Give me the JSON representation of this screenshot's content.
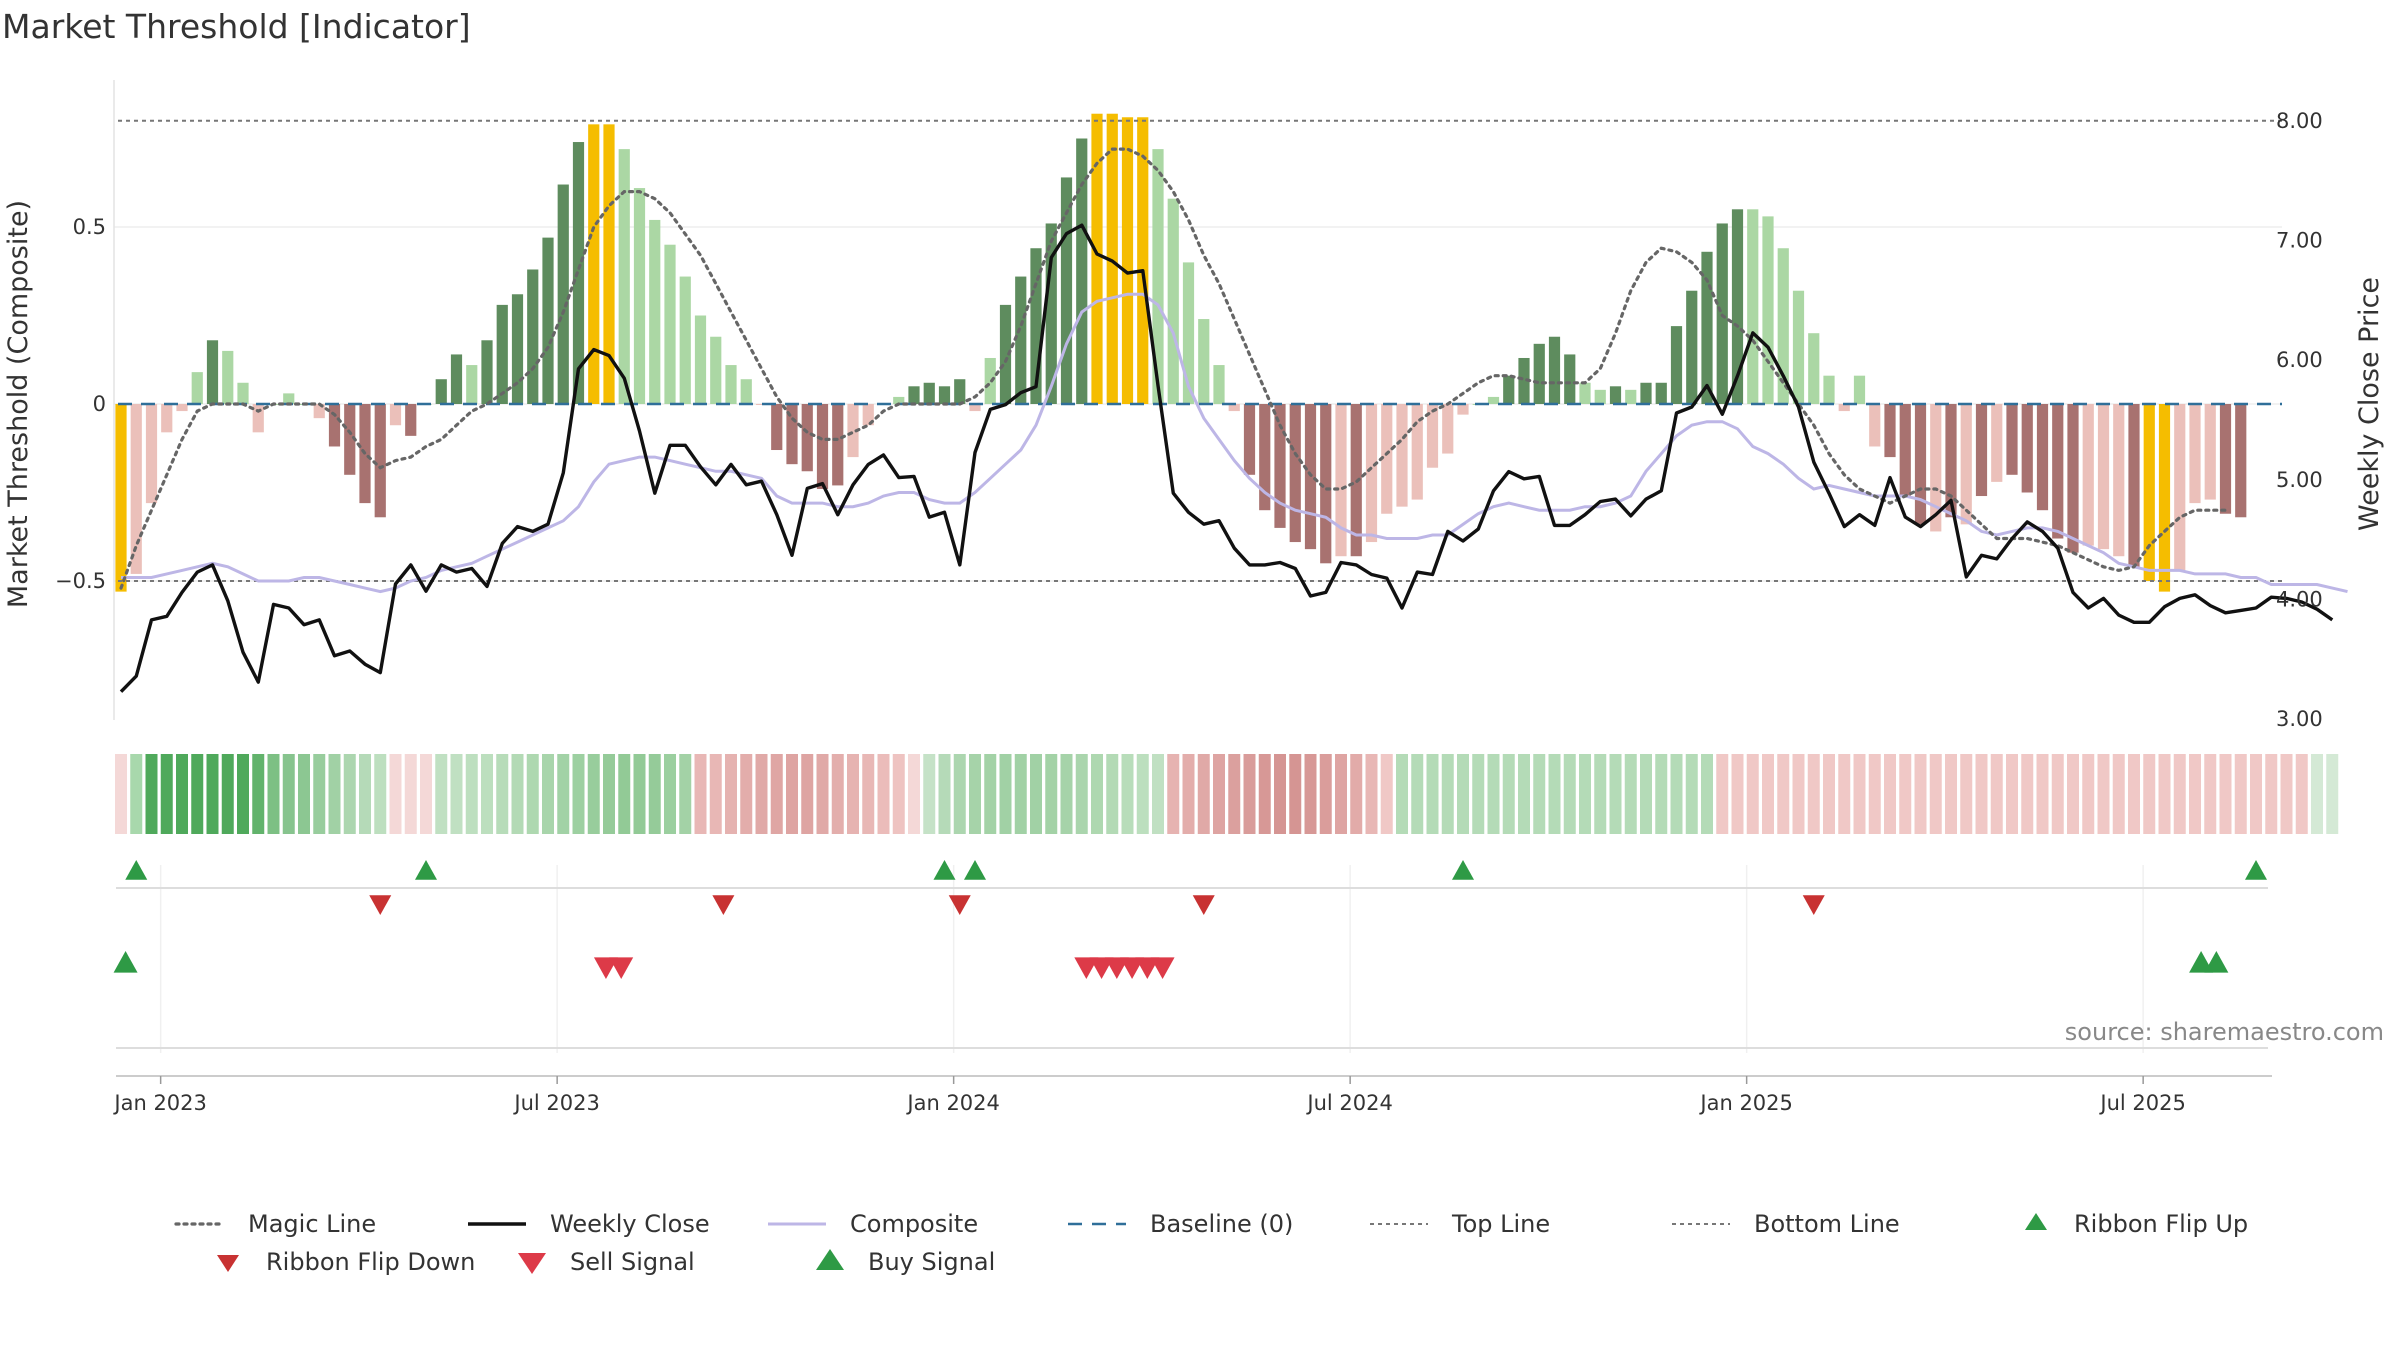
{
  "title": "Market Threshold [Indicator]",
  "source": "source: sharemaestro.com",
  "colors": {
    "bar_gold": "#f5bd00",
    "bar_green_dark": "#5e8c5e",
    "bar_green_light": "#abd7a4",
    "bar_red_dark": "#a87270",
    "bar_red_light": "#ebc0ba",
    "close_line": "#111111",
    "composite_line": "#bdb6e6",
    "magic_line": "#666666",
    "baseline": "#2f6f99",
    "ref_line": "#777777",
    "flip_up": "#2e9a45",
    "flip_down": "#c83232",
    "sell": "#dd3a48",
    "buy": "#2e9a45"
  },
  "chart_data": {
    "type": "bar",
    "title": "Market Threshold [Indicator]",
    "y_left_label": "Market Threshold (Composite)",
    "y_right_label": "Weekly Close Price",
    "y_left_ticks": [
      "0.5",
      "0",
      "−0.5"
    ],
    "y_left_tick_values": [
      0.5,
      0,
      -0.5
    ],
    "y_right_ticks": [
      "8.00",
      "7.00",
      "6.00",
      "5.00",
      "4.00",
      "3.00"
    ],
    "y_right_tick_values": [
      8,
      7,
      6,
      5,
      4,
      3
    ],
    "x_ticks": [
      "Jan 2023",
      "Jul 2023",
      "Jan 2024",
      "Jul 2024",
      "Jan 2025",
      "Jul 2025"
    ],
    "x_tick_weeks": [
      2.6,
      28.6,
      54.6,
      80.6,
      106.6,
      132.6
    ],
    "ylim_left": [
      -0.9,
      0.92
    ],
    "ylim_right": [
      3.0,
      8.2
    ],
    "top_line": 0.8,
    "bottom_line": -0.5,
    "baseline": 0,
    "weekly_close": [
      3.22,
      3.35,
      3.82,
      3.85,
      4.05,
      4.22,
      4.28,
      3.98,
      3.55,
      3.3,
      3.95,
      3.92,
      3.78,
      3.82,
      3.52,
      3.56,
      3.45,
      3.38,
      4.12,
      4.28,
      4.06,
      4.28,
      4.22,
      4.25,
      4.1,
      4.46,
      4.6,
      4.56,
      4.62,
      5.05,
      5.92,
      6.08,
      6.03,
      5.84,
      5.4,
      4.88,
      5.28,
      5.28,
      5.1,
      4.95,
      5.12,
      4.95,
      4.98,
      4.7,
      4.36,
      4.92,
      4.96,
      4.7,
      4.95,
      5.12,
      5.2,
      5.01,
      5.02,
      4.68,
      4.72,
      4.28,
      5.22,
      5.58,
      5.62,
      5.72,
      5.77,
      6.85,
      7.05,
      7.12,
      6.88,
      6.82,
      6.72,
      6.74,
      5.78,
      4.88,
      4.72,
      4.62,
      4.65,
      4.42,
      4.28,
      4.28,
      4.3,
      4.25,
      4.02,
      4.05,
      4.3,
      4.28,
      4.2,
      4.17,
      3.92,
      4.22,
      4.2,
      4.56,
      4.48,
      4.58,
      4.9,
      5.06,
      5.0,
      5.02,
      4.61,
      4.61,
      4.7,
      4.81,
      4.83,
      4.69,
      4.83,
      4.9,
      5.55,
      5.6,
      5.78,
      5.54,
      5.86,
      6.22,
      6.1,
      5.86,
      5.6,
      5.14,
      4.88,
      4.6,
      4.7,
      4.61,
      5.01,
      4.68,
      4.6,
      4.7,
      4.82,
      4.18,
      4.36,
      4.33,
      4.5,
      4.64,
      4.56,
      4.42,
      4.05,
      3.92,
      4.0,
      3.86,
      3.8,
      3.8,
      3.93,
      4.0,
      4.03,
      3.94,
      3.88,
      3.9,
      3.92,
      4.01,
      4.0,
      3.97,
      3.91,
      3.82
    ],
    "composite": [
      -0.49,
      -0.49,
      -0.49,
      -0.48,
      -0.47,
      -0.46,
      -0.45,
      -0.46,
      -0.48,
      -0.5,
      -0.5,
      -0.5,
      -0.49,
      -0.49,
      -0.5,
      -0.51,
      -0.52,
      -0.53,
      -0.52,
      -0.5,
      -0.49,
      -0.47,
      -0.46,
      -0.45,
      -0.43,
      -0.41,
      -0.39,
      -0.37,
      -0.35,
      -0.33,
      -0.29,
      -0.22,
      -0.17,
      -0.16,
      -0.15,
      -0.15,
      -0.16,
      -0.17,
      -0.18,
      -0.19,
      -0.19,
      -0.2,
      -0.21,
      -0.26,
      -0.28,
      -0.28,
      -0.28,
      -0.29,
      -0.29,
      -0.28,
      -0.26,
      -0.25,
      -0.25,
      -0.27,
      -0.28,
      -0.28,
      -0.25,
      -0.21,
      -0.17,
      -0.13,
      -0.06,
      0.05,
      0.17,
      0.26,
      0.29,
      0.3,
      0.31,
      0.31,
      0.28,
      0.2,
      0.05,
      -0.04,
      -0.1,
      -0.16,
      -0.21,
      -0.25,
      -0.28,
      -0.3,
      -0.31,
      -0.32,
      -0.35,
      -0.37,
      -0.37,
      -0.38,
      -0.38,
      -0.38,
      -0.37,
      -0.37,
      -0.34,
      -0.31,
      -0.29,
      -0.28,
      -0.29,
      -0.3,
      -0.3,
      -0.3,
      -0.29,
      -0.29,
      -0.28,
      -0.26,
      -0.19,
      -0.14,
      -0.09,
      -0.06,
      -0.05,
      -0.05,
      -0.07,
      -0.12,
      -0.14,
      -0.17,
      -0.21,
      -0.24,
      -0.23,
      -0.24,
      -0.25,
      -0.26,
      -0.26,
      -0.26,
      -0.27,
      -0.29,
      -0.31,
      -0.33,
      -0.36,
      -0.37,
      -0.36,
      -0.35,
      -0.35,
      -0.36,
      -0.38,
      -0.4,
      -0.42,
      -0.45,
      -0.46,
      -0.47,
      -0.47,
      -0.47,
      -0.48,
      -0.48,
      -0.48,
      -0.49,
      -0.49,
      -0.51,
      -0.51,
      -0.51,
      -0.51,
      -0.52,
      -0.53
    ],
    "magic_line": [
      -0.52,
      -0.4,
      -0.3,
      -0.2,
      -0.1,
      -0.02,
      0.0,
      0.0,
      0.0,
      -0.02,
      0.0,
      0.0,
      0.0,
      0.0,
      -0.03,
      -0.08,
      -0.14,
      -0.18,
      -0.16,
      -0.15,
      -0.12,
      -0.1,
      -0.06,
      -0.02,
      0.0,
      0.03,
      0.06,
      0.1,
      0.16,
      0.26,
      0.38,
      0.5,
      0.56,
      0.6,
      0.6,
      0.58,
      0.54,
      0.48,
      0.42,
      0.34,
      0.26,
      0.18,
      0.1,
      0.02,
      -0.04,
      -0.08,
      -0.1,
      -0.1,
      -0.08,
      -0.06,
      -0.02,
      0.0,
      0.0,
      0.0,
      0.0,
      0.0,
      0.02,
      0.06,
      0.12,
      0.22,
      0.34,
      0.46,
      0.54,
      0.62,
      0.68,
      0.72,
      0.72,
      0.7,
      0.66,
      0.6,
      0.52,
      0.42,
      0.34,
      0.24,
      0.14,
      0.04,
      -0.06,
      -0.14,
      -0.2,
      -0.24,
      -0.24,
      -0.22,
      -0.18,
      -0.14,
      -0.1,
      -0.05,
      -0.02,
      0.0,
      0.03,
      0.06,
      0.08,
      0.08,
      0.07,
      0.06,
      0.06,
      0.06,
      0.06,
      0.1,
      0.2,
      0.32,
      0.4,
      0.44,
      0.43,
      0.4,
      0.35,
      0.25,
      0.22,
      0.18,
      0.12,
      0.06,
      0.0,
      -0.06,
      -0.14,
      -0.2,
      -0.24,
      -0.26,
      -0.28,
      -0.26,
      -0.24,
      -0.24,
      -0.26,
      -0.3,
      -0.34,
      -0.38,
      -0.38,
      -0.38,
      -0.39,
      -0.4,
      -0.42,
      -0.44,
      -0.46,
      -0.47,
      -0.46,
      -0.4,
      -0.36,
      -0.32,
      -0.3,
      -0.3,
      -0.3
    ],
    "bars": [
      {
        "v": -0.53,
        "c": "gold"
      },
      {
        "v": -0.48,
        "c": "rl"
      },
      {
        "v": -0.28,
        "c": "rl"
      },
      {
        "v": -0.08,
        "c": "rl"
      },
      {
        "v": -0.02,
        "c": "rl"
      },
      {
        "v": 0.09,
        "c": "gl"
      },
      {
        "v": 0.18,
        "c": "gd"
      },
      {
        "v": 0.15,
        "c": "gl"
      },
      {
        "v": 0.06,
        "c": "gl"
      },
      {
        "v": -0.08,
        "c": "rl"
      },
      {
        "v": 0.0,
        "c": "gl"
      },
      {
        "v": 0.03,
        "c": "gl"
      },
      {
        "v": 0.0,
        "c": "gl"
      },
      {
        "v": -0.04,
        "c": "rl"
      },
      {
        "v": -0.12,
        "c": "rd"
      },
      {
        "v": -0.2,
        "c": "rd"
      },
      {
        "v": -0.28,
        "c": "rd"
      },
      {
        "v": -0.32,
        "c": "rd"
      },
      {
        "v": -0.06,
        "c": "rl"
      },
      {
        "v": -0.09,
        "c": "rd"
      },
      {
        "v": 0.0,
        "c": "gl"
      },
      {
        "v": 0.07,
        "c": "gd"
      },
      {
        "v": 0.14,
        "c": "gd"
      },
      {
        "v": 0.11,
        "c": "gl"
      },
      {
        "v": 0.18,
        "c": "gd"
      },
      {
        "v": 0.28,
        "c": "gd"
      },
      {
        "v": 0.31,
        "c": "gd"
      },
      {
        "v": 0.38,
        "c": "gd"
      },
      {
        "v": 0.47,
        "c": "gd"
      },
      {
        "v": 0.62,
        "c": "gd"
      },
      {
        "v": 0.74,
        "c": "gd"
      },
      {
        "v": 0.79,
        "c": "gold"
      },
      {
        "v": 0.79,
        "c": "gold"
      },
      {
        "v": 0.72,
        "c": "gl"
      },
      {
        "v": 0.61,
        "c": "gl"
      },
      {
        "v": 0.52,
        "c": "gl"
      },
      {
        "v": 0.45,
        "c": "gl"
      },
      {
        "v": 0.36,
        "c": "gl"
      },
      {
        "v": 0.25,
        "c": "gl"
      },
      {
        "v": 0.19,
        "c": "gl"
      },
      {
        "v": 0.11,
        "c": "gl"
      },
      {
        "v": 0.07,
        "c": "gl"
      },
      {
        "v": 0.0,
        "c": "rl"
      },
      {
        "v": -0.13,
        "c": "rd"
      },
      {
        "v": -0.17,
        "c": "rd"
      },
      {
        "v": -0.19,
        "c": "rd"
      },
      {
        "v": -0.24,
        "c": "rd"
      },
      {
        "v": -0.23,
        "c": "rd"
      },
      {
        "v": -0.15,
        "c": "rl"
      },
      {
        "v": -0.06,
        "c": "rl"
      },
      {
        "v": 0.0,
        "c": "gl"
      },
      {
        "v": 0.02,
        "c": "gl"
      },
      {
        "v": 0.05,
        "c": "gd"
      },
      {
        "v": 0.06,
        "c": "gd"
      },
      {
        "v": 0.05,
        "c": "gd"
      },
      {
        "v": 0.07,
        "c": "gd"
      },
      {
        "v": -0.02,
        "c": "rl"
      },
      {
        "v": 0.13,
        "c": "gl"
      },
      {
        "v": 0.28,
        "c": "gd"
      },
      {
        "v": 0.36,
        "c": "gd"
      },
      {
        "v": 0.44,
        "c": "gd"
      },
      {
        "v": 0.51,
        "c": "gd"
      },
      {
        "v": 0.64,
        "c": "gd"
      },
      {
        "v": 0.75,
        "c": "gd"
      },
      {
        "v": 0.82,
        "c": "gold"
      },
      {
        "v": 0.82,
        "c": "gold"
      },
      {
        "v": 0.81,
        "c": "gold"
      },
      {
        "v": 0.81,
        "c": "gold"
      },
      {
        "v": 0.72,
        "c": "gl"
      },
      {
        "v": 0.58,
        "c": "gl"
      },
      {
        "v": 0.4,
        "c": "gl"
      },
      {
        "v": 0.24,
        "c": "gl"
      },
      {
        "v": 0.11,
        "c": "gl"
      },
      {
        "v": -0.02,
        "c": "rl"
      },
      {
        "v": -0.2,
        "c": "rd"
      },
      {
        "v": -0.3,
        "c": "rd"
      },
      {
        "v": -0.35,
        "c": "rd"
      },
      {
        "v": -0.39,
        "c": "rd"
      },
      {
        "v": -0.41,
        "c": "rd"
      },
      {
        "v": -0.45,
        "c": "rd"
      },
      {
        "v": -0.43,
        "c": "rl"
      },
      {
        "v": -0.43,
        "c": "rd"
      },
      {
        "v": -0.39,
        "c": "rl"
      },
      {
        "v": -0.31,
        "c": "rl"
      },
      {
        "v": -0.29,
        "c": "rl"
      },
      {
        "v": -0.27,
        "c": "rl"
      },
      {
        "v": -0.18,
        "c": "rl"
      },
      {
        "v": -0.14,
        "c": "rl"
      },
      {
        "v": -0.03,
        "c": "rl"
      },
      {
        "v": 0.0,
        "c": "gl"
      },
      {
        "v": 0.02,
        "c": "gl"
      },
      {
        "v": 0.08,
        "c": "gd"
      },
      {
        "v": 0.13,
        "c": "gd"
      },
      {
        "v": 0.17,
        "c": "gd"
      },
      {
        "v": 0.19,
        "c": "gd"
      },
      {
        "v": 0.14,
        "c": "gd"
      },
      {
        "v": 0.06,
        "c": "gl"
      },
      {
        "v": 0.04,
        "c": "gl"
      },
      {
        "v": 0.05,
        "c": "gd"
      },
      {
        "v": 0.04,
        "c": "gl"
      },
      {
        "v": 0.06,
        "c": "gd"
      },
      {
        "v": 0.06,
        "c": "gd"
      },
      {
        "v": 0.22,
        "c": "gd"
      },
      {
        "v": 0.32,
        "c": "gd"
      },
      {
        "v": 0.43,
        "c": "gd"
      },
      {
        "v": 0.51,
        "c": "gd"
      },
      {
        "v": 0.55,
        "c": "gd"
      },
      {
        "v": 0.55,
        "c": "gl"
      },
      {
        "v": 0.53,
        "c": "gl"
      },
      {
        "v": 0.44,
        "c": "gl"
      },
      {
        "v": 0.32,
        "c": "gl"
      },
      {
        "v": 0.2,
        "c": "gl"
      },
      {
        "v": 0.08,
        "c": "gl"
      },
      {
        "v": -0.02,
        "c": "rl"
      },
      {
        "v": 0.08,
        "c": "gl"
      },
      {
        "v": -0.12,
        "c": "rl"
      },
      {
        "v": -0.15,
        "c": "rd"
      },
      {
        "v": -0.26,
        "c": "rd"
      },
      {
        "v": -0.34,
        "c": "rd"
      },
      {
        "v": -0.36,
        "c": "rl"
      },
      {
        "v": -0.32,
        "c": "rd"
      },
      {
        "v": -0.34,
        "c": "rl"
      },
      {
        "v": -0.26,
        "c": "rd"
      },
      {
        "v": -0.22,
        "c": "rl"
      },
      {
        "v": -0.2,
        "c": "rd"
      },
      {
        "v": -0.25,
        "c": "rd"
      },
      {
        "v": -0.3,
        "c": "rd"
      },
      {
        "v": -0.38,
        "c": "rd"
      },
      {
        "v": -0.42,
        "c": "rd"
      },
      {
        "v": -0.4,
        "c": "rl"
      },
      {
        "v": -0.41,
        "c": "rl"
      },
      {
        "v": -0.43,
        "c": "rl"
      },
      {
        "v": -0.46,
        "c": "rd"
      },
      {
        "v": -0.5,
        "c": "gold"
      },
      {
        "v": -0.53,
        "c": "gold"
      },
      {
        "v": -0.47,
        "c": "rl"
      },
      {
        "v": -0.28,
        "c": "rl"
      },
      {
        "v": -0.27,
        "c": "rl"
      },
      {
        "v": -0.31,
        "c": "rd"
      },
      {
        "v": -0.32,
        "c": "rd"
      }
    ],
    "ribbon": [
      "#f4d8d7",
      "#a8d8ac",
      "#4fa95b",
      "#4fa95b",
      "#4fa95b",
      "#4fa95b",
      "#4fa95b",
      "#4fa95b",
      "#4fa95b",
      "#62b36c",
      "#7dc084",
      "#87c48e",
      "#8cc792",
      "#98cd9d",
      "#a1d1a5",
      "#acd6af",
      "#b5dab8",
      "#bddfbf",
      "#f4d8d7",
      "#f4d8d7",
      "#f4d8d7",
      "#c0e0c2",
      "#c0e0c2",
      "#bddfbf",
      "#bcdfbe",
      "#b7dcb9",
      "#b3dab5",
      "#aed8b0",
      "#a8d5ab",
      "#a2d2a6",
      "#9dd0a1",
      "#98cd9c",
      "#95cb99",
      "#92ca96",
      "#92ca96",
      "#95cb99",
      "#9bcf9f",
      "#a3d2a6",
      "#e8b7b5",
      "#e8b7b5",
      "#e5b2b0",
      "#e3adab",
      "#e0a9a7",
      "#dfa6a4",
      "#dea4a2",
      "#dea4a2",
      "#e0a9a7",
      "#e3aeac",
      "#e6b3b1",
      "#e8b7b5",
      "#ebbcba",
      "#eec3c1",
      "#f4d8d7",
      "#c5e2c7",
      "#b5dab8",
      "#acd6af",
      "#a6d3a9",
      "#a3d2a6",
      "#a1d1a5",
      "#a1d1a5",
      "#a1d1a5",
      "#a3d2a6",
      "#a6d3a9",
      "#aad5ad",
      "#aed8b0",
      "#b3dab5",
      "#b8ddba",
      "#bcdfbe",
      "#c0e0c2",
      "#e6b3b1",
      "#e3adab",
      "#e0a9a7",
      "#dea4a2",
      "#dba09e",
      "#d99c9a",
      "#d79896",
      "#d59593",
      "#d59593",
      "#d79896",
      "#da9d9b",
      "#dea4a2",
      "#e2aba9",
      "#e8b7b5",
      "#f0c8c6",
      "#b4dbb7",
      "#b4dbb7",
      "#b4dbb7",
      "#b4dbb7",
      "#b4dbb7",
      "#b4dbb7",
      "#b4dbb7",
      "#b4dbb7",
      "#b4dbb7",
      "#b4dbb7",
      "#b4dbb7",
      "#b4dbb7",
      "#b4dbb7",
      "#b4dbb7",
      "#b4dbb7",
      "#b4dbb7",
      "#b4dbb7",
      "#b4dbb7",
      "#b4dbb7",
      "#b4dbb7",
      "#b4dbb7",
      "#f0c8c6",
      "#f0c8c6",
      "#f0c8c6",
      "#f0c8c6",
      "#f0c8c6",
      "#f0c8c6",
      "#f0c8c6",
      "#f0c8c6",
      "#f0c8c6",
      "#f0c8c6",
      "#f0c8c6",
      "#f0c8c6",
      "#f0c8c6",
      "#f0c8c6",
      "#f0c8c6",
      "#f0c8c6",
      "#f0c8c6",
      "#f0c8c6",
      "#f0c8c6",
      "#f0c8c6",
      "#f0c8c6",
      "#f0c8c6",
      "#f0c8c6",
      "#f0c8c6",
      "#f0c8c6",
      "#f0c8c6",
      "#f0c8c6",
      "#f0c8c6",
      "#f0c8c6",
      "#f0c8c6",
      "#f0c8c6",
      "#f0c8c6",
      "#f0c8c6",
      "#f0c8c6",
      "#f0c8c6",
      "#f0c8c6",
      "#f0c8c6",
      "#f0c8c6",
      "#f0c8c6",
      "#d4e9d5",
      "#d4e9d5"
    ],
    "ribbon_flip_up": [
      1.0,
      20.0,
      54.0,
      56.0,
      88.0,
      140.0
    ],
    "ribbon_flip_down": [
      17.0,
      39.5,
      55.0,
      71.0,
      111.0
    ],
    "sell_signals": [
      31.8,
      32.8,
      63.3,
      64.3,
      65.3,
      66.3,
      67.3,
      68.3
    ],
    "buy_signals": [
      0.3,
      136.4,
      137.4
    ],
    "legend": [
      {
        "label": "Magic Line",
        "kind": "dotted",
        "color": "#666666"
      },
      {
        "label": "Weekly Close",
        "kind": "solid",
        "color": "#111111"
      },
      {
        "label": "Composite",
        "kind": "solid-light",
        "color": "#bdb6e6"
      },
      {
        "label": "Baseline (0)",
        "kind": "dashed",
        "color": "#2f6f99"
      },
      {
        "label": "Top Line",
        "kind": "dotted-thin",
        "color": "#777777"
      },
      {
        "label": "Bottom Line",
        "kind": "dotted-thin",
        "color": "#777777"
      },
      {
        "label": "Ribbon Flip Up",
        "kind": "tri-up-small",
        "color": "#2e9a45"
      },
      {
        "label": "Ribbon Flip Down",
        "kind": "tri-down-small",
        "color": "#c83232"
      },
      {
        "label": "Sell Signal",
        "kind": "tri-down",
        "color": "#dd3a48"
      },
      {
        "label": "Buy Signal",
        "kind": "tri-up",
        "color": "#2e9a45"
      }
    ]
  }
}
